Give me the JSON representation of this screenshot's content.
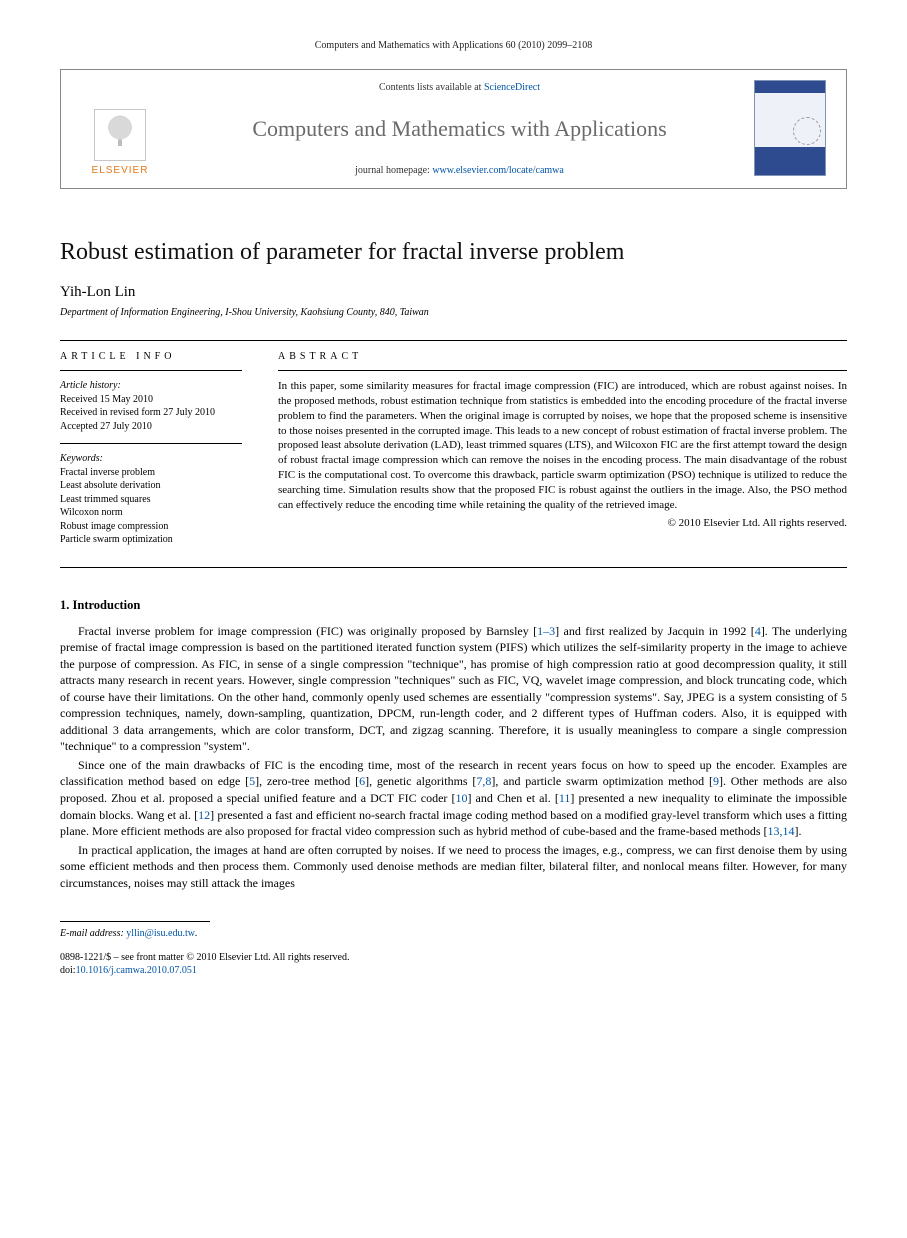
{
  "running_head": "Computers and Mathematics with Applications 60 (2010) 2099–2108",
  "masthead": {
    "contents_prefix": "Contents lists available at ",
    "contents_link_text": "ScienceDirect",
    "journal_name": "Computers and Mathematics with Applications",
    "homepage_prefix": "journal homepage: ",
    "homepage_link_text": "www.elsevier.com/locate/camwa",
    "publisher_word": "ELSEVIER"
  },
  "title": "Robust estimation of parameter for fractal inverse problem",
  "author": "Yih-Lon Lin",
  "affiliation": "Department of Information Engineering, I-Shou University, Kaohsiung County, 840, Taiwan",
  "article_info": {
    "head": "ARTICLE INFO",
    "history_label": "Article history:",
    "history": [
      "Received 15 May 2010",
      "Received in revised form 27 July 2010",
      "Accepted 27 July 2010"
    ],
    "keywords_label": "Keywords:",
    "keywords": [
      "Fractal inverse problem",
      "Least absolute derivation",
      "Least trimmed squares",
      "Wilcoxon norm",
      "Robust image compression",
      "Particle swarm optimization"
    ]
  },
  "abstract": {
    "head": "ABSTRACT",
    "text": "In this paper, some similarity measures for fractal image compression (FIC) are introduced, which are robust against noises. In the proposed methods, robust estimation technique from statistics is embedded into the encoding procedure of the fractal inverse problem to find the parameters. When the original image is corrupted by noises, we hope that the proposed scheme is insensitive to those noises presented in the corrupted image. This leads to a new concept of robust estimation of fractal inverse problem. The proposed least absolute derivation (LAD), least trimmed squares (LTS), and Wilcoxon FIC are the first attempt toward the design of robust fractal image compression which can remove the noises in the encoding process. The main disadvantage of the robust FIC is the computational cost. To overcome this drawback, particle swarm optimization (PSO) technique is utilized to reduce the searching time. Simulation results show that the proposed FIC is robust against the outliers in the image. Also, the PSO method can effectively reduce the encoding time while retaining the quality of the retrieved image.",
    "copyright": "© 2010 Elsevier Ltd. All rights reserved."
  },
  "section1": {
    "head": "1. Introduction",
    "p1_a": "Fractal inverse problem for image compression (FIC) was originally proposed by Barnsley [",
    "p1_ref1": "1–3",
    "p1_b": "] and first realized by Jacquin in 1992 [",
    "p1_ref2": "4",
    "p1_c": "]. The underlying premise of fractal image compression is based on the partitioned iterated function system (PIFS) which utilizes the self-similarity property in the image to achieve the purpose of compression. As FIC, in sense of a single compression \"technique\", has promise of high compression ratio at good decompression quality, it still attracts many research in recent years. However, single compression \"techniques\" such as FIC, VQ, wavelet image compression, and block truncating code, which of course have their limitations. On the other hand, commonly openly used schemes are essentially \"compression systems\". Say, JPEG is a system consisting of 5 compression techniques, namely, down-sampling, quantization, DPCM, run-length coder, and 2 different types of Huffman coders. Also, it is equipped with additional 3 data arrangements, which are color transform, DCT, and zigzag scanning. Therefore, it is usually meaningless to compare a single compression \"technique\" to a compression \"system\".",
    "p2_a": "Since one of the main drawbacks of FIC is the encoding time, most of the research in recent years focus on how to speed up the encoder. Examples are classification method based on edge [",
    "p2_ref1": "5",
    "p2_b": "], zero-tree method [",
    "p2_ref2": "6",
    "p2_c": "], genetic algorithms [",
    "p2_ref3": "7,8",
    "p2_d": "], and particle swarm optimization method [",
    "p2_ref4": "9",
    "p2_e": "]. Other methods are also proposed. Zhou et al. proposed a special unified feature and a DCT FIC coder [",
    "p2_ref5": "10",
    "p2_f": "] and Chen et al. [",
    "p2_ref6": "11",
    "p2_g": "] presented a new inequality to eliminate the impossible domain blocks. Wang et al. [",
    "p2_ref7": "12",
    "p2_h": "] presented a fast and efficient no-search fractal image coding method based on a modified gray-level transform which uses a fitting plane. More efficient methods are also proposed for fractal video compression such as hybrid method of cube-based and the frame-based methods [",
    "p2_ref8": "13,14",
    "p2_i": "].",
    "p3": "In practical application, the images at hand are often corrupted by noises. If we need to process the images, e.g., compress, we can first denoise them by using some efficient methods and then process them. Commonly used denoise methods are median filter, bilateral filter, and nonlocal means filter. However, for many circumstances, noises may still attack the images"
  },
  "footnote": {
    "label": "E-mail address: ",
    "email": "yllin@isu.edu.tw",
    "tail": "."
  },
  "bottom": {
    "line1": "0898-1221/$ – see front matter © 2010 Elsevier Ltd. All rights reserved.",
    "doi_label": "doi:",
    "doi": "10.1016/j.camwa.2010.07.051"
  },
  "colors": {
    "link": "#0054a6",
    "elsevier_orange": "#e67817",
    "journal_gray": "#6a6a6a"
  }
}
